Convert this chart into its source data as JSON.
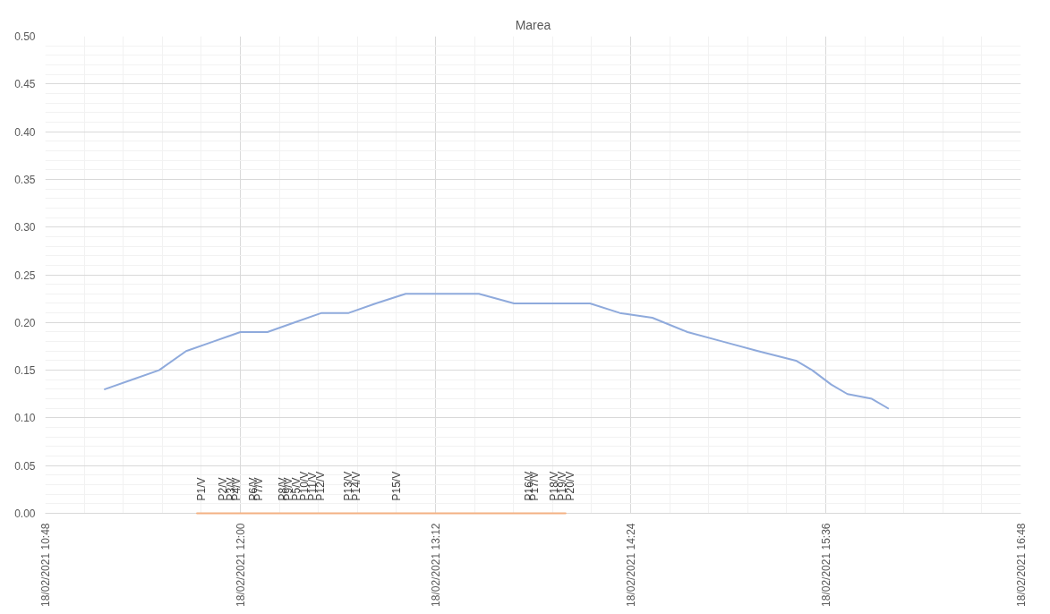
{
  "chart_data": {
    "type": "line",
    "title": "Marea",
    "xlim": [
      "2021-02-18T10:48",
      "2021-02-18T16:48"
    ],
    "xticks": [
      {
        "value": "2021-02-18T10:48",
        "label": "18/02/2021 10:48"
      },
      {
        "value": "2021-02-18T12:00",
        "label": "18/02/2021 12:00"
      },
      {
        "value": "2021-02-18T13:12",
        "label": "18/02/2021 13:12"
      },
      {
        "value": "2021-02-18T14:24",
        "label": "18/02/2021 14:24"
      },
      {
        "value": "2021-02-18T15:36",
        "label": "18/02/2021 15:36"
      },
      {
        "value": "2021-02-18T16:48",
        "label": "18/02/2021 16:48"
      }
    ],
    "ylim": [
      0,
      0.5
    ],
    "yticks": [
      {
        "value": 0,
        "label": "0.00"
      },
      {
        "value": 0.05,
        "label": "0.05"
      },
      {
        "value": 0.1,
        "label": "0.10"
      },
      {
        "value": 0.15,
        "label": "0.15"
      },
      {
        "value": 0.2,
        "label": "0.20"
      },
      {
        "value": 0.25,
        "label": "0.25"
      },
      {
        "value": 0.3,
        "label": "0.30"
      },
      {
        "value": 0.35,
        "label": "0.35"
      },
      {
        "value": 0.4,
        "label": "0.40"
      },
      {
        "value": 0.45,
        "label": "0.45"
      },
      {
        "value": 0.5,
        "label": "0.50"
      }
    ],
    "grid": true,
    "series": [
      {
        "color": "#8faadc",
        "x": [
          "2021-02-18T11:10",
          "2021-02-18T11:20",
          "2021-02-18T11:30",
          "2021-02-18T11:40",
          "2021-02-18T11:50",
          "2021-02-18T12:00",
          "2021-02-18T12:10",
          "2021-02-18T12:20",
          "2021-02-18T12:30",
          "2021-02-18T12:40",
          "2021-02-18T12:50",
          "2021-02-18T13:01",
          "2021-02-18T13:12",
          "2021-02-18T13:28",
          "2021-02-18T13:41",
          "2021-02-18T13:54",
          "2021-02-18T14:09",
          "2021-02-18T14:20",
          "2021-02-18T14:32",
          "2021-02-18T14:45",
          "2021-02-18T14:58",
          "2021-02-18T15:11",
          "2021-02-18T15:25",
          "2021-02-18T15:31",
          "2021-02-18T15:38",
          "2021-02-18T15:44",
          "2021-02-18T15:53",
          "2021-02-18T15:59"
        ],
        "values": [
          0.13,
          0.14,
          0.15,
          0.17,
          0.18,
          0.19,
          0.19,
          0.2,
          0.21,
          0.21,
          0.22,
          0.23,
          0.23,
          0.23,
          0.22,
          0.22,
          0.22,
          0.21,
          0.205,
          0.19,
          0.18,
          0.17,
          0.16,
          0.15,
          0.135,
          0.125,
          0.12,
          0.11
        ]
      },
      {
        "color": "#f4b183",
        "x": [
          "2021-02-18T11:44",
          "2021-02-18T11:52",
          "2021-02-18T11:55",
          "2021-02-18T11:57",
          "2021-02-18T12:03",
          "2021-02-18T12:05",
          "2021-02-18T12:14",
          "2021-02-18T12:16",
          "2021-02-18T12:19",
          "2021-02-18T12:22",
          "2021-02-18T12:25",
          "2021-02-18T12:28",
          "2021-02-18T12:38",
          "2021-02-18T12:41",
          "2021-02-18T12:56",
          "2021-02-18T13:45",
          "2021-02-18T13:47",
          "2021-02-18T13:54",
          "2021-02-18T13:57",
          "2021-02-18T14:00"
        ],
        "values": [
          0,
          0,
          0,
          0,
          0,
          0,
          0,
          0,
          0,
          0,
          0,
          0,
          0,
          0,
          0,
          0,
          0,
          0,
          0,
          0
        ],
        "value_labels": [
          "P1/V",
          "P2/V",
          "P3/V",
          "P4/V",
          "P6/V",
          "P7/V",
          "P8/V",
          "P9/V",
          "P5/V",
          "P10/V",
          "P11/V",
          "P12/V",
          "P13/V",
          "P14/V",
          "P15/V",
          "P16/V",
          "P17/V",
          "P18/V",
          "P19/V",
          "P20/V"
        ]
      }
    ]
  }
}
